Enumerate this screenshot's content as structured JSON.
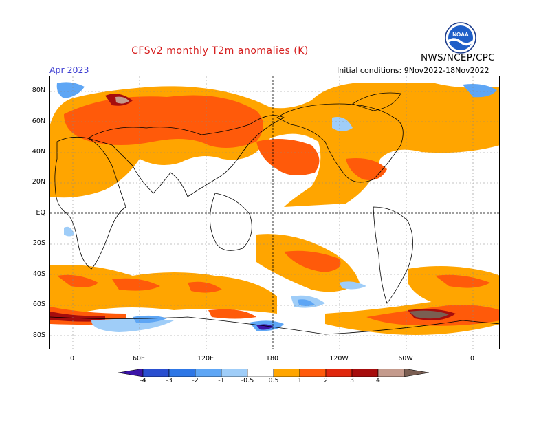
{
  "title": "CFSv2 monthly T2m anomalies (K)",
  "month": "Apr 2023",
  "organization": "NWS/NCEP/CPC",
  "initial_conditions": "Initial conditions: 9Nov2022-18Nov2022",
  "logo_text": "NOAA",
  "colors": {
    "title": "#d62020",
    "month": "#3a3ad0",
    "org": "#000000"
  },
  "lat_labels": [
    "80N",
    "60N",
    "40N",
    "20N",
    "EQ",
    "20S",
    "40S",
    "60S",
    "80S"
  ],
  "lon_labels": [
    "0",
    "60E",
    "120E",
    "180",
    "120W",
    "60W",
    "0"
  ],
  "colorbar": {
    "levels": [
      "-4",
      "-3",
      "-2",
      "-1",
      "-0.5",
      "0.5",
      "1",
      "2",
      "3",
      "4"
    ],
    "colors": [
      "#3b14a8",
      "#2a4fd0",
      "#2e77e6",
      "#5ea6f5",
      "#9fcdf8",
      "#ffffff",
      "#ffa500",
      "#ff5a0a",
      "#e0270d",
      "#a60d0d",
      "#c49a8c",
      "#7a5e52"
    ]
  }
}
